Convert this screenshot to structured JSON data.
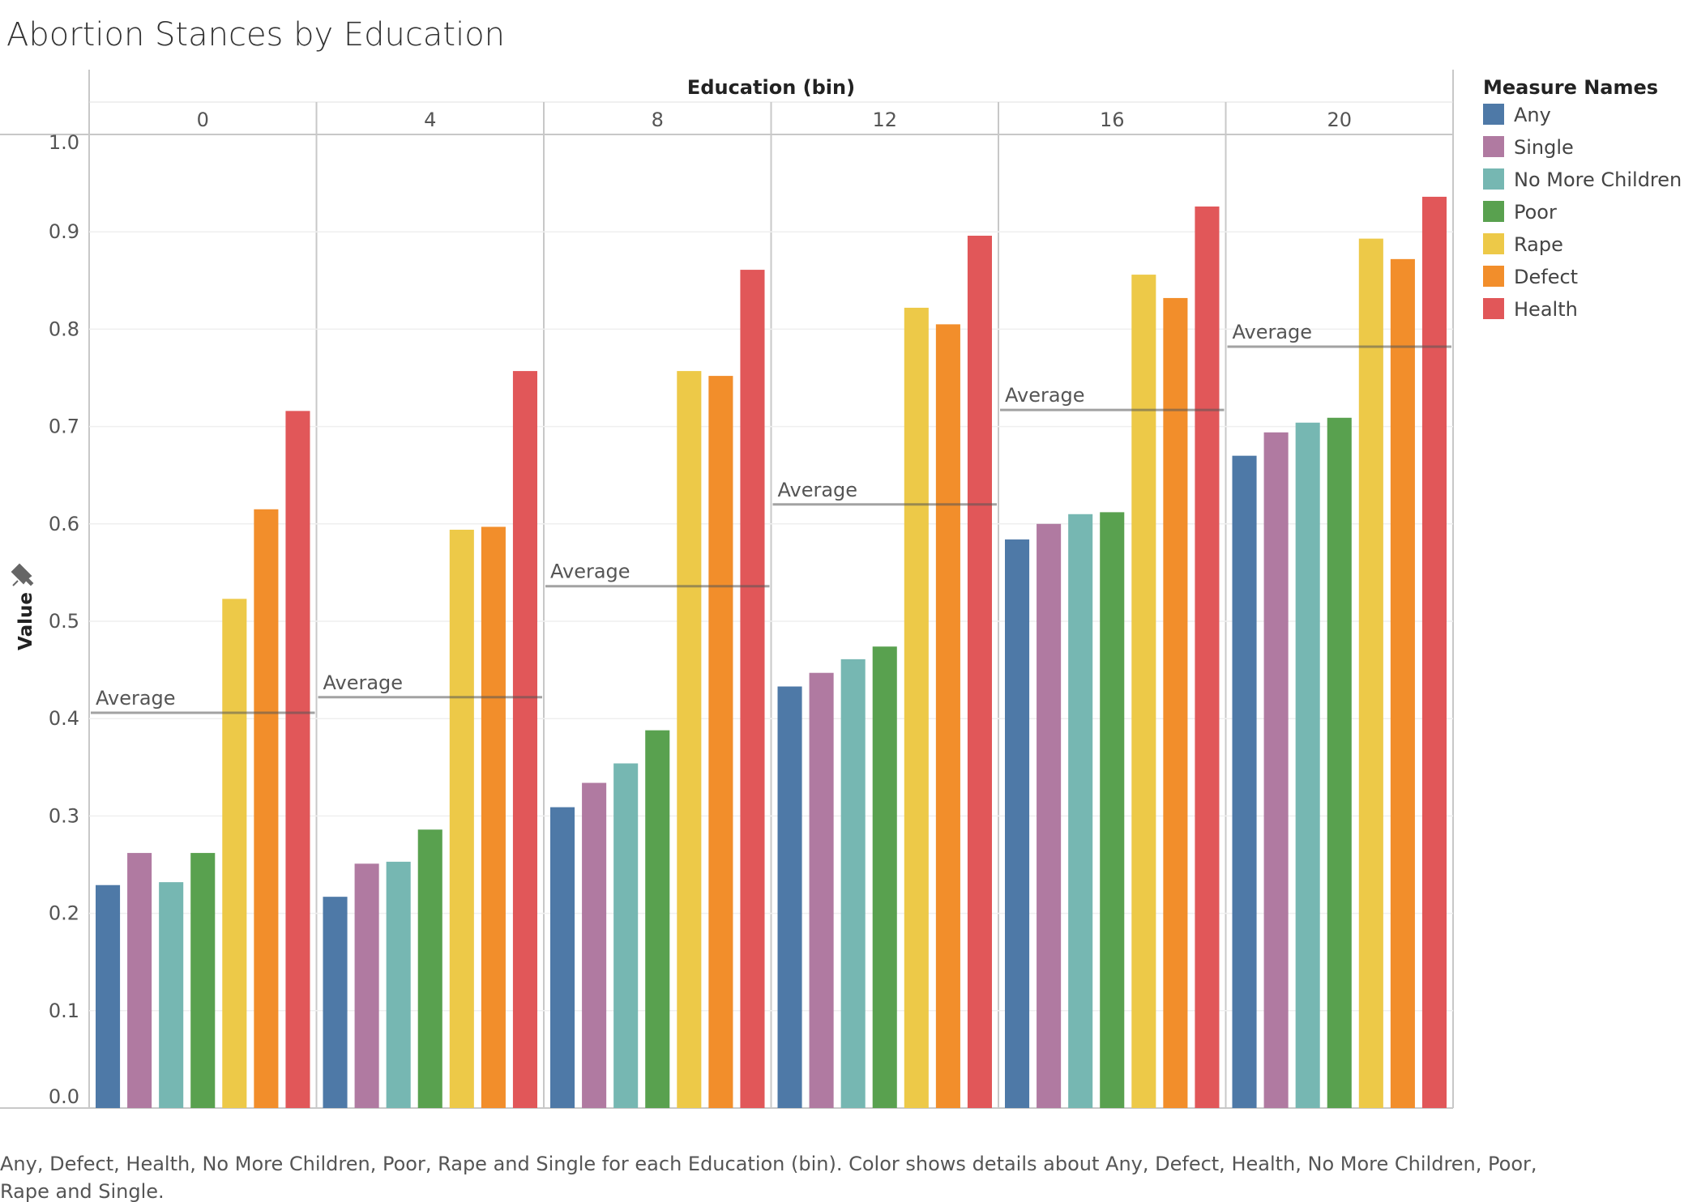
{
  "title": "Abortion Stances by Education",
  "caption_lines": [
    "Any, Defect, Health, No More Children, Poor, Rape and Single for each Education (bin).  Color shows details about Any, Defect, Health, No More Children, Poor,",
    "Rape and Single."
  ],
  "legend": {
    "title": "Measure Names"
  },
  "reference_line_label": "Average",
  "pin_icon": "pin-icon",
  "chart_data": {
    "type": "bar",
    "column_header": "Education (bin)",
    "categories": [
      "0",
      "4",
      "8",
      "12",
      "16",
      "20"
    ],
    "ylabel": "Value",
    "ylim": [
      0,
      1.0
    ],
    "yticks": [
      "0.0",
      "0.1",
      "0.2",
      "0.3",
      "0.4",
      "0.5",
      "0.6",
      "0.7",
      "0.8",
      "0.9",
      "1.0"
    ],
    "grid": true,
    "legend_position": "right",
    "series": [
      {
        "name": "Any",
        "color": "#4e79a7",
        "values": [
          0.229,
          0.217,
          0.309,
          0.433,
          0.584,
          0.67
        ]
      },
      {
        "name": "Single",
        "color": "#b07aa1",
        "values": [
          0.262,
          0.251,
          0.334,
          0.447,
          0.6,
          0.694
        ]
      },
      {
        "name": "No More Children",
        "color": "#76b7b2",
        "values": [
          0.232,
          0.253,
          0.354,
          0.461,
          0.61,
          0.704
        ]
      },
      {
        "name": "Poor",
        "color": "#59a14f",
        "values": [
          0.262,
          0.286,
          0.388,
          0.474,
          0.612,
          0.709
        ]
      },
      {
        "name": "Rape",
        "color": "#edc948",
        "values": [
          0.523,
          0.594,
          0.757,
          0.822,
          0.856,
          0.893
        ]
      },
      {
        "name": "Defect",
        "color": "#f28e2b",
        "values": [
          0.615,
          0.597,
          0.752,
          0.805,
          0.832,
          0.872
        ]
      },
      {
        "name": "Health",
        "color": "#e15759",
        "values": [
          0.716,
          0.757,
          0.861,
          0.896,
          0.926,
          0.936
        ]
      }
    ],
    "reference_line": {
      "label": "Average",
      "values": [
        0.406,
        0.422,
        0.536,
        0.62,
        0.717,
        0.782
      ]
    }
  }
}
